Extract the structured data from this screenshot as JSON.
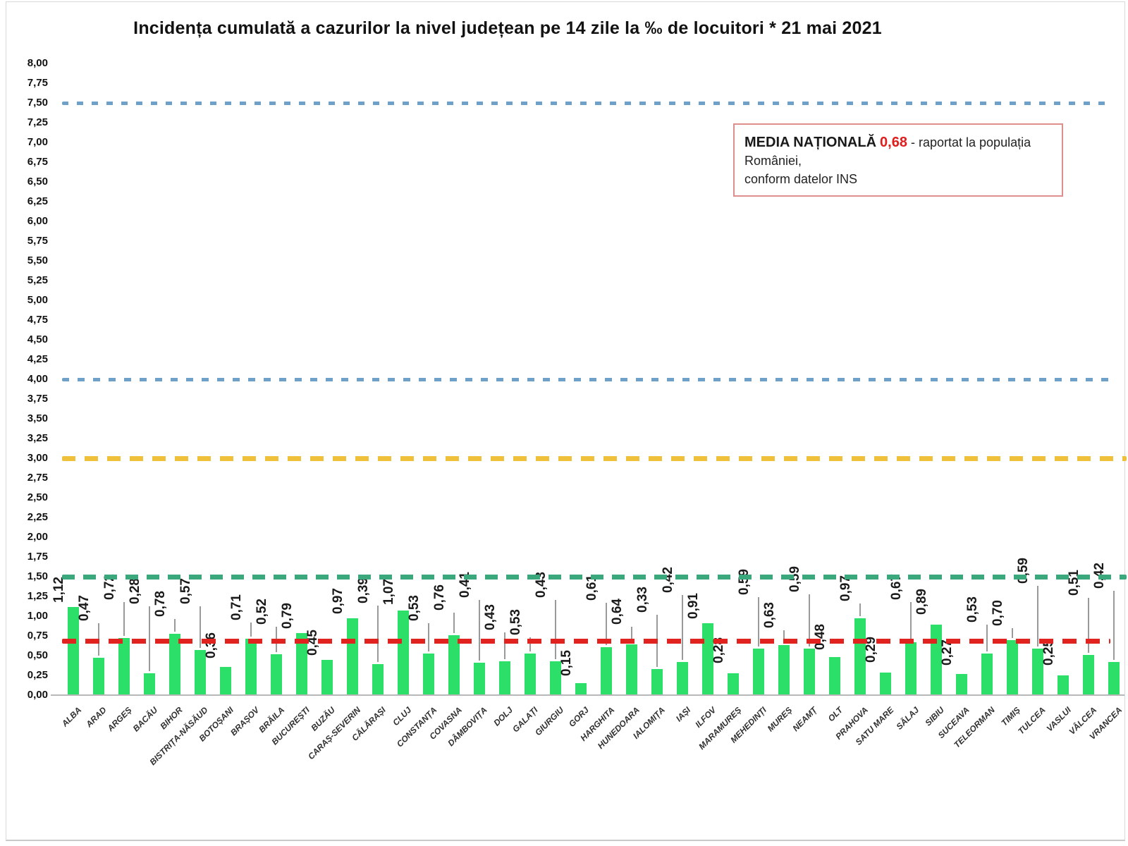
{
  "title": "Incidența cumulată a cazurilor la nivel județean pe 14 zile la ‰ de locuitori *  21 mai 2021",
  "legend_box": {
    "label": "MEDIA NAȚIONALĂ",
    "value": "0,68",
    "value_color": "#e01d1d",
    "text_after": "- raportat la populația României,",
    "text_line2": "conform datelor INS",
    "border_color": "#df8e8e"
  },
  "chart_data": {
    "type": "bar",
    "title": "Incidența cumulată a cazurilor la nivel județean pe 14 zile la ‰ de locuitori *  21 mai 2021",
    "xlabel": "",
    "ylabel": "",
    "ylim": [
      0,
      8
    ],
    "ytick_step": 0.25,
    "ytick_format": "comma-decimal",
    "grid": false,
    "bar_color": "#2bdf68",
    "national_average": 0.68,
    "categories": [
      "ALBA",
      "ARAD",
      "ARGEȘ",
      "BACĂU",
      "BIHOR",
      "BISTRIȚA-NĂSĂUD",
      "BOTOȘANI",
      "BRAȘOV",
      "BRĂILA",
      "BUCUREȘTI",
      "BUZĂU",
      "CARAȘ-SEVERIN",
      "CĂLĂRAȘI",
      "CLUJ",
      "CONSTANȚA",
      "COVASNA",
      "DÂMBOVIȚA",
      "DOLJ",
      "GALAȚI",
      "GIURGIU",
      "GORJ",
      "HARGHITA",
      "HUNEDOARA",
      "IALOMIȚA",
      "IAȘI",
      "ILFOV",
      "MARAMUREȘ",
      "MEHEDINȚI",
      "MUREȘ",
      "NEAMȚ",
      "OLT",
      "PRAHOVA",
      "SATU MARE",
      "SĂLAJ",
      "SIBIU",
      "SUCEAVA",
      "TELEORMAN",
      "TIMIȘ",
      "TULCEA",
      "VASLUI",
      "VÂLCEA",
      "VRANCEA"
    ],
    "values": [
      1.12,
      0.47,
      0.72,
      0.28,
      0.78,
      0.57,
      0.36,
      0.71,
      0.52,
      0.79,
      0.45,
      0.97,
      0.39,
      1.07,
      0.53,
      0.76,
      0.41,
      0.43,
      0.53,
      0.43,
      0.15,
      0.61,
      0.64,
      0.33,
      0.42,
      0.91,
      0.28,
      0.59,
      0.63,
      0.59,
      0.48,
      0.97,
      0.29,
      0.67,
      0.89,
      0.27,
      0.53,
      0.7,
      0.59,
      0.25,
      0.51,
      0.42
    ],
    "value_labels": [
      "1,12",
      "0,47",
      "0,72",
      "0,28",
      "0,78",
      "0,57",
      "0,36",
      "0,71",
      "0,52",
      "0,79",
      "0,45",
      "0,97",
      "0,39",
      "1,07",
      "0,53",
      "0,76",
      "0,41",
      "0,43",
      "0,53",
      "0,43",
      "0,15",
      "0,61",
      "0,64",
      "0,33",
      "0,42",
      "0,91",
      "0,28",
      "0,59",
      "0,63",
      "0,59",
      "0,48",
      "0,97",
      "0,29",
      "0,67",
      "0,89",
      "0,27",
      "0,53",
      "0,70",
      "0,59",
      "0,25",
      "0,51",
      "0,42"
    ],
    "reference_lines": [
      {
        "value": 7.5,
        "color": "#6fa0c8",
        "thickness": 5,
        "dash": 9,
        "gap": 12,
        "full": false
      },
      {
        "value": 4.0,
        "color": "#6fa0c8",
        "thickness": 5,
        "dash": 10,
        "gap": 12,
        "full": false
      },
      {
        "value": 3.0,
        "color": "#efc13b",
        "thickness": 7,
        "dash": 19,
        "gap": 13,
        "full": true
      },
      {
        "value": 1.5,
        "color": "#3aa87c",
        "thickness": 7,
        "dash": 18,
        "gap": 12,
        "full": true
      },
      {
        "value": 0.68,
        "color": "#e0231e",
        "thickness": 7,
        "dash": 20,
        "gap": 13,
        "full": false
      }
    ],
    "legend_position": "top-right",
    "label_lifts": [
      6,
      52,
      54,
      98,
      24,
      65,
      12,
      26,
      42,
      6,
      6,
      6,
      86,
      8,
      46,
      35,
      92,
      44,
      26,
      90,
      10,
      66,
      28,
      80,
      98,
      6,
      14,
      76,
      24,
      80,
      10,
      24,
      14,
      60,
      14,
      12,
      44,
      20,
      92,
      14,
      84,
      104
    ]
  }
}
